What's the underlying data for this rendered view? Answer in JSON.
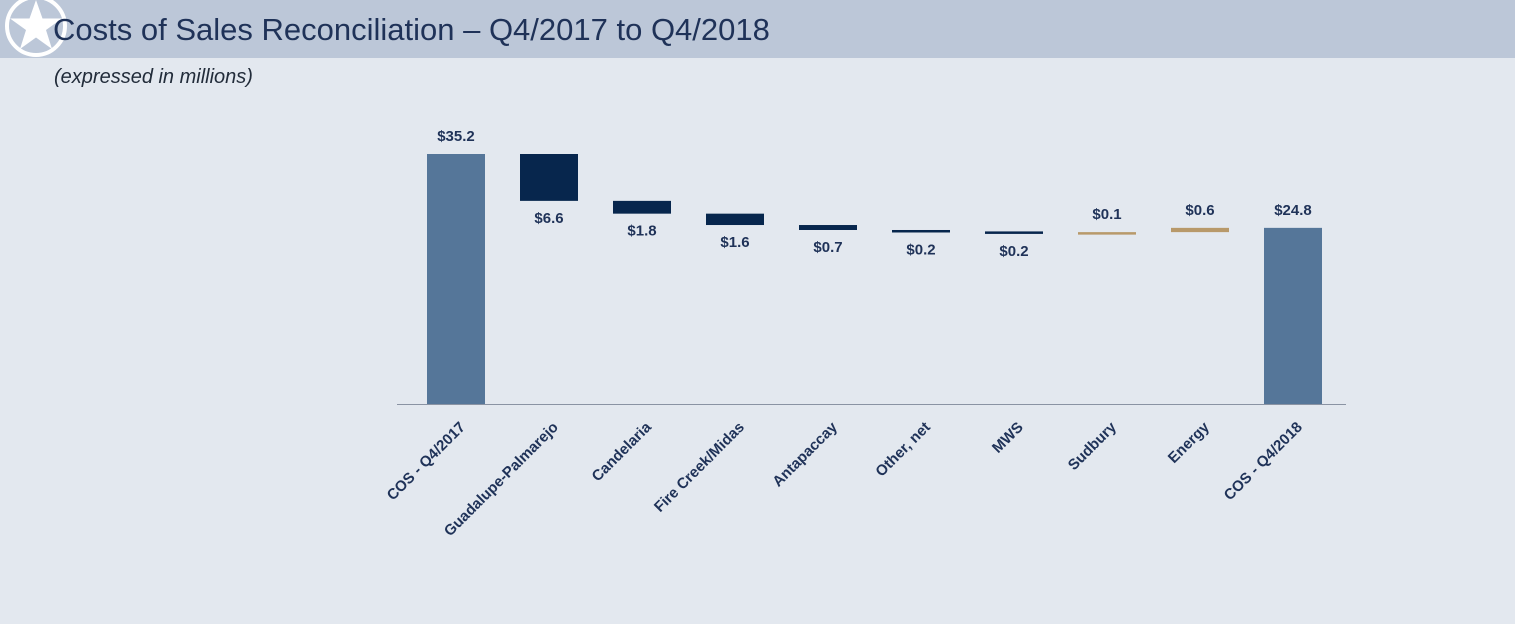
{
  "header": {
    "title": "Costs of Sales Reconciliation – Q4/2017 to Q4/2018",
    "subtitle": "(expressed in millions)"
  },
  "colors": {
    "header_bg": "#bcc7d8",
    "total": "#557699",
    "decrease": "#07264d",
    "increase": "#b8996a",
    "label_text": "#1f3258",
    "axis": "#8a93a3"
  },
  "chart_data": {
    "type": "bar",
    "subtype": "waterfall",
    "categories": [
      "COS - Q4/2017",
      "Guadalupe-Palmarejo",
      "Candelaria",
      "Fire Creek/Midas",
      "Antapaccay",
      "Other, net",
      "MWS",
      "Sudbury",
      "Energy",
      "COS - Q4/2018"
    ],
    "values": [
      35.2,
      -6.6,
      -1.8,
      -1.6,
      -0.7,
      -0.2,
      -0.2,
      0.1,
      0.6,
      24.8
    ],
    "kinds": [
      "total",
      "decrease",
      "decrease",
      "decrease",
      "decrease",
      "decrease",
      "decrease",
      "increase",
      "increase",
      "total"
    ],
    "data_labels": [
      "$35.2",
      "$6.6",
      "$1.8",
      "$1.6",
      "$0.7",
      "$0.2",
      "$0.2",
      "$0.1",
      "$0.6",
      "$24.8"
    ],
    "ylim": [
      0,
      35.2
    ],
    "grid": false,
    "legend": "none"
  }
}
